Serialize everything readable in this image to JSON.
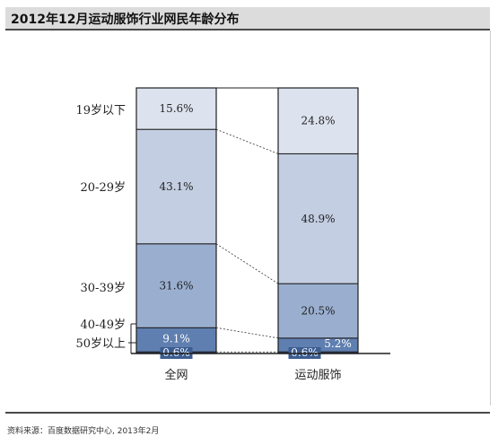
{
  "title": "2012年12月运动服饰行业网民年龄分布",
  "source": "资料来源：百度数据研究中心, 2013年2月",
  "chart_data": {
    "type": "bar",
    "stacked": true,
    "percent": true,
    "categories": [
      "全网",
      "运动服饰"
    ],
    "series": [
      {
        "name": "50岁以上",
        "values": [
          0.6,
          0.6
        ],
        "labels": [
          "0.6%",
          "0.6%"
        ],
        "color": "#3c5d91"
      },
      {
        "name": "40-49岁",
        "values": [
          9.1,
          5.2
        ],
        "labels": [
          "9.1%",
          "5.2%"
        ],
        "color": "#5f7fb0"
      },
      {
        "name": "30-39岁",
        "values": [
          31.6,
          20.5
        ],
        "labels": [
          "31.6%",
          "20.5%"
        ],
        "color": "#9aafd0"
      },
      {
        "name": "20-29岁",
        "values": [
          43.1,
          48.9
        ],
        "labels": [
          "43.1%",
          "48.9%"
        ],
        "color": "#c3cee2"
      },
      {
        "name": "19岁以下",
        "values": [
          15.6,
          24.8
        ],
        "labels": [
          "15.6%",
          "24.8%"
        ],
        "color": "#dde3ee"
      }
    ],
    "ylim": [
      0,
      100
    ],
    "legend": "left",
    "connectors": true
  }
}
